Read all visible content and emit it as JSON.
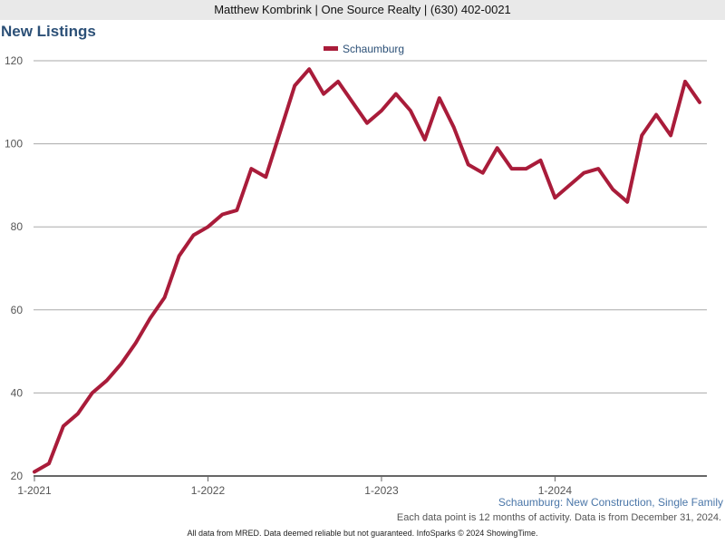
{
  "header": {
    "agent_line": "Matthew Kombrink | One Source Realty | (630) 402-0021"
  },
  "chart_data": {
    "type": "line",
    "title": "New Listings",
    "subtitle": "Schaumburg: New Construction, Single Family",
    "xlabel": "",
    "ylabel": "",
    "ylim": [
      20,
      120
    ],
    "yticks": [
      20,
      40,
      60,
      80,
      100,
      120
    ],
    "xtick_labels": [
      "1-2021",
      "1-2022",
      "1-2023",
      "1-2024"
    ],
    "xtick_index": [
      0,
      12,
      24,
      36
    ],
    "legend": {
      "position": "top-center"
    },
    "grid": true,
    "series": [
      {
        "name": "Schaumburg",
        "color": "#a91c3a",
        "values": [
          21,
          23,
          32,
          35,
          40,
          43,
          47,
          52,
          58,
          63,
          73,
          78,
          80,
          83,
          84,
          94,
          92,
          103,
          114,
          118,
          112,
          115,
          110,
          105,
          108,
          112,
          108,
          101,
          111,
          104,
          95,
          93,
          99,
          94,
          94,
          96,
          87,
          90,
          93,
          94,
          89,
          86,
          102,
          107,
          102,
          115,
          110
        ]
      }
    ]
  },
  "notes": {
    "activity_note": "Each data point is 12 months of activity. Data is from December 31, 2024.",
    "footer": "All data from MRED. Data deemed reliable but not guaranteed. InfoSparks © 2024 ShowingTime."
  },
  "colors": {
    "title": "#2c5077",
    "series": "#a91c3a",
    "subtitle": "#4a76a8",
    "grid": "#aaaaaa"
  }
}
